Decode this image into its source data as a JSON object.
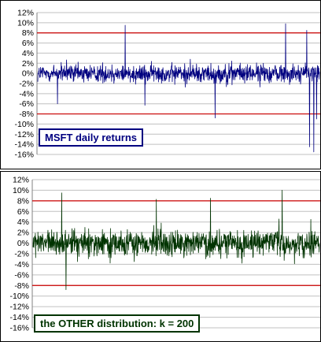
{
  "chart_data": [
    {
      "type": "line",
      "series": [
        {
          "name": "MSFT daily returns",
          "color": "#000080"
        }
      ],
      "yticks": [
        "12%",
        "10%",
        "8%",
        "6%",
        "4%",
        "2%",
        "0%",
        "-2%",
        "-4%",
        "-6%",
        "-8%",
        "-10%",
        "-12%",
        "-14%",
        "-16%"
      ],
      "ylim": [
        -16,
        12
      ],
      "threshold_lines": [
        8,
        -8
      ],
      "threshold_color": "#cc0000",
      "grid_color": "#c0c0c0",
      "grid": true,
      "legend_placement": "bottom-left",
      "approx_points": 1000,
      "typical_range": [
        -3,
        3
      ],
      "spikes": [
        {
          "x": 0.07,
          "y": -6.0
        },
        {
          "x": 0.31,
          "y": 9.5
        },
        {
          "x": 0.38,
          "y": -6.3
        },
        {
          "x": 0.63,
          "y": -8.8
        },
        {
          "x": 0.88,
          "y": 9.8
        },
        {
          "x": 0.955,
          "y": 8.5
        },
        {
          "x": 0.965,
          "y": -14.5
        },
        {
          "x": 0.98,
          "y": -15.5
        },
        {
          "x": 0.99,
          "y": -9.0
        }
      ]
    },
    {
      "type": "line",
      "series": [
        {
          "name": "the OTHER distribution: k = 200",
          "color": "#003300"
        }
      ],
      "yticks": [
        "12%",
        "10%",
        "8%",
        "6%",
        "4%",
        "2%",
        "0%",
        "-2%",
        "-4%",
        "-6%",
        "-8%",
        "-10%",
        "-12%",
        "-14%",
        "-16%"
      ],
      "ylim": [
        -16,
        12
      ],
      "threshold_lines": [
        8,
        -8
      ],
      "threshold_color": "#cc0000",
      "grid_color": "#c0c0c0",
      "grid": true,
      "legend_placement": "bottom-left",
      "approx_points": 1000,
      "typical_range": [
        -4,
        4
      ],
      "spikes": [
        {
          "x": 0.1,
          "y": 9.5
        },
        {
          "x": 0.115,
          "y": -8.8
        },
        {
          "x": 0.43,
          "y": 8.3
        },
        {
          "x": 0.62,
          "y": 8.5
        },
        {
          "x": 0.87,
          "y": 10.0
        },
        {
          "x": 0.97,
          "y": 4.5
        }
      ]
    }
  ]
}
